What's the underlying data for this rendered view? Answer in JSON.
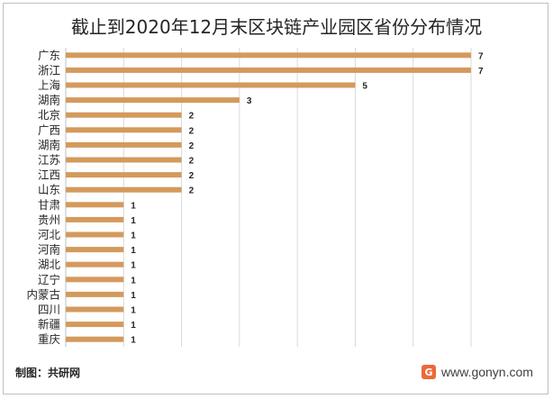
{
  "chart_data": {
    "type": "bar",
    "orientation": "horizontal",
    "title": "截止到2020年12月末区块链产业园区省份分布情况",
    "categories": [
      "广东",
      "浙江",
      "上海",
      "湖南",
      "北京",
      "广西",
      "湖南",
      "江苏",
      "江西",
      "山东",
      "甘肃",
      "贵州",
      "河北",
      "河南",
      "湖北",
      "辽宁",
      "内蒙古",
      "四川",
      "新疆",
      "重庆"
    ],
    "values": [
      7,
      7,
      5,
      3,
      2,
      2,
      2,
      2,
      2,
      2,
      1,
      1,
      1,
      1,
      1,
      1,
      1,
      1,
      1,
      1
    ],
    "xlim": [
      0,
      7
    ],
    "grid": true,
    "bar_color": "#d49a5c",
    "grid_color": "#d9d9d9"
  },
  "footer": {
    "source": "制图：共研网",
    "site": "www.gonyn.com",
    "logo_glyph": "G",
    "logo_icon": "gonyn-logo-icon"
  }
}
